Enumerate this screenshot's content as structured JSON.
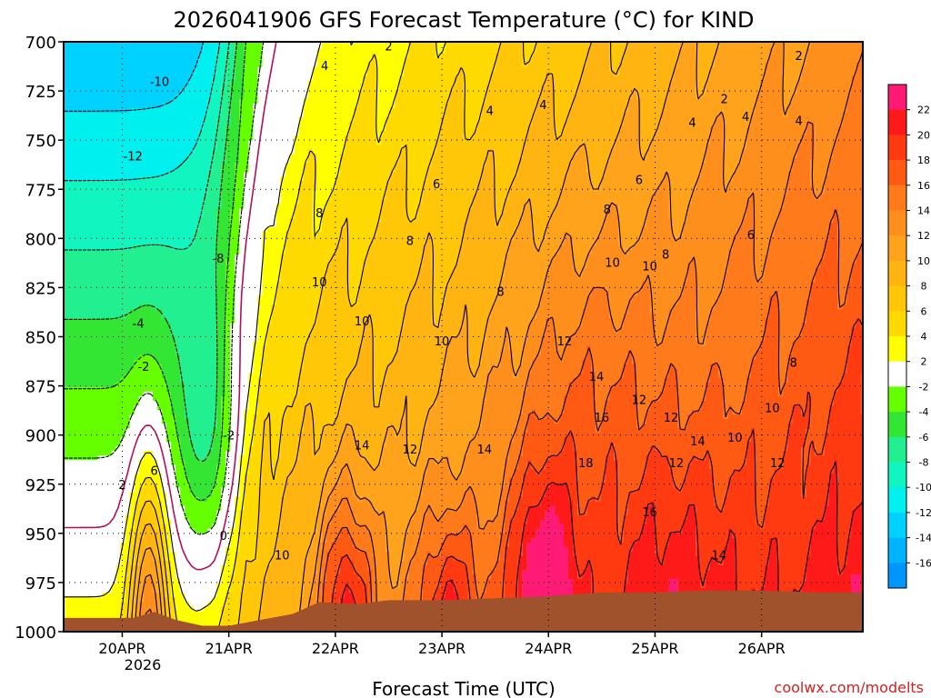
{
  "chart_data": {
    "type": "heatmap",
    "title": "2026041906 GFS Forecast Temperature (°C) for KIND",
    "xlabel": "Forecast Time (UTC)",
    "ylabel": "",
    "credit": "coolwx.com/modelts",
    "y_ticks": [
      "700",
      "725",
      "750",
      "775",
      "800",
      "825",
      "850",
      "875",
      "900",
      "925",
      "950",
      "975",
      "1000"
    ],
    "y_values": [
      700,
      725,
      750,
      775,
      800,
      825,
      850,
      875,
      900,
      925,
      950,
      975,
      1000
    ],
    "ylim": [
      700,
      1000
    ],
    "x_ticks": [
      "20APR",
      "21APR",
      "22APR",
      "23APR",
      "24APR",
      "25APR",
      "26APR"
    ],
    "x_year": "2026",
    "xlim_days": [
      -0.55,
      6.95
    ],
    "colorbar": {
      "ticks": [
        "22",
        "20",
        "18",
        "16",
        "14",
        "12",
        "10",
        "8",
        "6",
        "4",
        "2",
        "-2",
        "-4",
        "-6",
        "-8",
        "-10",
        "-12",
        "-14",
        "-16"
      ],
      "colors": [
        "#ff1a75",
        "#ff1a1a",
        "#ff3a10",
        "#ff5a14",
        "#ff7a1a",
        "#ff8f1c",
        "#ffa31c",
        "#ffb412",
        "#ffc708",
        "#ffda00",
        "#ffff00",
        "#ffffff",
        "#66ff00",
        "#33e633",
        "#22f090",
        "#11f5c0",
        "#00f0f0",
        "#00d2ff",
        "#00b4ff",
        "#0096ff"
      ]
    },
    "contour_labels": [
      {
        "t": 0.35,
        "p": 720,
        "v": "-10"
      },
      {
        "t": 0.1,
        "p": 758,
        "v": "-12"
      },
      {
        "t": 0.9,
        "p": 810,
        "v": "-8"
      },
      {
        "t": 0.15,
        "p": 843,
        "v": "-4"
      },
      {
        "t": 0.2,
        "p": 865,
        "v": "-2"
      },
      {
        "t": 1.0,
        "p": 900,
        "v": "-2"
      },
      {
        "t": 0.95,
        "p": 951,
        "v": "0"
      },
      {
        "t": 0.0,
        "p": 925,
        "v": "2"
      },
      {
        "t": 0.3,
        "p": 918,
        "v": "6"
      },
      {
        "t": 1.9,
        "p": 712,
        "v": "4"
      },
      {
        "t": 2.5,
        "p": 702,
        "v": "2"
      },
      {
        "t": 1.85,
        "p": 787,
        "v": "8"
      },
      {
        "t": 1.85,
        "p": 822,
        "v": "10"
      },
      {
        "t": 1.5,
        "p": 961,
        "v": "10"
      },
      {
        "t": 2.25,
        "p": 842,
        "v": "10"
      },
      {
        "t": 2.7,
        "p": 801,
        "v": "8"
      },
      {
        "t": 2.95,
        "p": 772,
        "v": "6"
      },
      {
        "t": 3.45,
        "p": 735,
        "v": "4"
      },
      {
        "t": 3.0,
        "p": 852,
        "v": "10"
      },
      {
        "t": 2.25,
        "p": 905,
        "v": "14"
      },
      {
        "t": 2.7,
        "p": 907,
        "v": "12"
      },
      {
        "t": 3.4,
        "p": 907,
        "v": "14"
      },
      {
        "t": 3.55,
        "p": 827,
        "v": "8"
      },
      {
        "t": 3.95,
        "p": 732,
        "v": "4"
      },
      {
        "t": 4.55,
        "p": 785,
        "v": "8"
      },
      {
        "t": 4.6,
        "p": 812,
        "v": "10"
      },
      {
        "t": 4.15,
        "p": 852,
        "v": "12"
      },
      {
        "t": 4.45,
        "p": 870,
        "v": "14"
      },
      {
        "t": 4.5,
        "p": 891,
        "v": "16"
      },
      {
        "t": 4.35,
        "p": 914,
        "v": "18"
      },
      {
        "t": 4.85,
        "p": 770,
        "v": "6"
      },
      {
        "t": 4.85,
        "p": 882,
        "v": "12"
      },
      {
        "t": 5.35,
        "p": 741,
        "v": "4"
      },
      {
        "t": 5.1,
        "p": 808,
        "v": "8"
      },
      {
        "t": 4.95,
        "p": 814,
        "v": "10"
      },
      {
        "t": 5.15,
        "p": 891,
        "v": "12"
      },
      {
        "t": 5.4,
        "p": 903,
        "v": "14"
      },
      {
        "t": 4.95,
        "p": 939,
        "v": "16"
      },
      {
        "t": 5.65,
        "p": 729,
        "v": "2"
      },
      {
        "t": 5.75,
        "p": 901,
        "v": "10"
      },
      {
        "t": 5.9,
        "p": 798,
        "v": "6"
      },
      {
        "t": 5.85,
        "p": 738,
        "v": "4"
      },
      {
        "t": 5.2,
        "p": 914,
        "v": "12"
      },
      {
        "t": 5.6,
        "p": 961,
        "v": "14"
      },
      {
        "t": 6.1,
        "p": 886,
        "v": "10"
      },
      {
        "t": 6.15,
        "p": 914,
        "v": "12"
      },
      {
        "t": 6.3,
        "p": 863,
        "v": "8"
      },
      {
        "t": 6.35,
        "p": 707,
        "v": "2"
      },
      {
        "t": 6.35,
        "p": 740,
        "v": "4"
      }
    ]
  }
}
